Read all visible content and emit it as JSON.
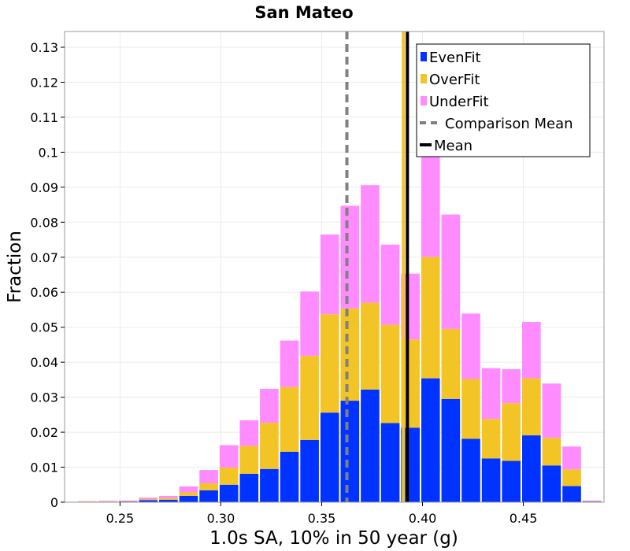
{
  "chart_data": {
    "type": "bar",
    "stacked": true,
    "title": "San Mateo",
    "xlabel": "1.0s SA, 10% in 50 year (g)",
    "ylabel": "Fraction",
    "xlim": [
      0.2225,
      0.49
    ],
    "ylim": [
      0,
      0.1345
    ],
    "bin_width": 0.01,
    "x_ticks": [
      0.25,
      0.3,
      0.35,
      0.4,
      0.45
    ],
    "x_tick_labels": [
      "0.25",
      "0.30",
      "0.35",
      "0.40",
      "0.45"
    ],
    "y_ticks": [
      0,
      0.01,
      0.02,
      0.03,
      0.04,
      0.05,
      0.06,
      0.07,
      0.08,
      0.09,
      0.1,
      0.11,
      0.12,
      0.13
    ],
    "y_tick_labels": [
      "0",
      "0.01",
      "0.02",
      "0.03",
      "0.04",
      "0.05",
      "0.06",
      "0.07",
      "0.08",
      "0.09",
      "0.1",
      "0.11",
      "0.12",
      "0.13"
    ],
    "x": [
      0.234,
      0.244,
      0.254,
      0.264,
      0.274,
      0.284,
      0.294,
      0.304,
      0.314,
      0.324,
      0.334,
      0.344,
      0.354,
      0.364,
      0.374,
      0.384,
      0.394,
      0.404,
      0.414,
      0.424,
      0.434,
      0.444,
      0.454,
      0.464,
      0.474,
      0.484
    ],
    "series": [
      {
        "name": "EvenFit",
        "color": "#0033ff",
        "values": [
          0.0001,
          0.0001,
          0.0002,
          0.0006,
          0.0007,
          0.0018,
          0.0034,
          0.005,
          0.0081,
          0.0095,
          0.0144,
          0.0178,
          0.0256,
          0.029,
          0.0322,
          0.0226,
          0.0213,
          0.0354,
          0.0295,
          0.0181,
          0.0125,
          0.0118,
          0.0191,
          0.0105,
          0.0046,
          0.0002
        ]
      },
      {
        "name": "OverFit",
        "color": "#f2c425",
        "values": [
          0.0001,
          0.0001,
          0.0001,
          0.0003,
          0.0005,
          0.001,
          0.002,
          0.0049,
          0.008,
          0.0132,
          0.0185,
          0.024,
          0.0281,
          0.0264,
          0.0248,
          0.0281,
          0.0252,
          0.0347,
          0.02,
          0.0171,
          0.0113,
          0.0165,
          0.0163,
          0.0079,
          0.0048,
          0.0001
        ]
      },
      {
        "name": "UnderFit",
        "color": "#ff8cff",
        "values": [
          0.0001,
          0.0002,
          0.0002,
          0.0004,
          0.0006,
          0.0017,
          0.0038,
          0.0064,
          0.0073,
          0.0097,
          0.0133,
          0.0184,
          0.0228,
          0.0293,
          0.0336,
          0.0229,
          0.0188,
          0.0317,
          0.0327,
          0.0187,
          0.0145,
          0.0097,
          0.0161,
          0.0155,
          0.0065,
          0.0002
        ]
      }
    ],
    "lines": [
      {
        "name": "Comparison Mean",
        "x": 0.3625,
        "style": "dashed",
        "color": "#808080"
      },
      {
        "name": "Mean",
        "x": 0.3925,
        "style": "solid",
        "color": "#000000"
      }
    ],
    "extra_lines": [
      {
        "x": 0.3905,
        "color": "#f2c425"
      },
      {
        "x": 0.3925,
        "color": "#ff8cff"
      }
    ],
    "legend": {
      "position": "top-right",
      "entries": [
        {
          "label": "EvenFit",
          "kind": "patch",
          "color": "#0033ff"
        },
        {
          "label": "OverFit",
          "kind": "patch",
          "color": "#f2c425"
        },
        {
          "label": "UnderFit",
          "kind": "patch",
          "color": "#ff8cff"
        },
        {
          "label": "Comparison Mean",
          "kind": "dashed-line",
          "color": "#808080"
        },
        {
          "label": "Mean",
          "kind": "line",
          "color": "#000000"
        }
      ]
    },
    "grid": true
  }
}
